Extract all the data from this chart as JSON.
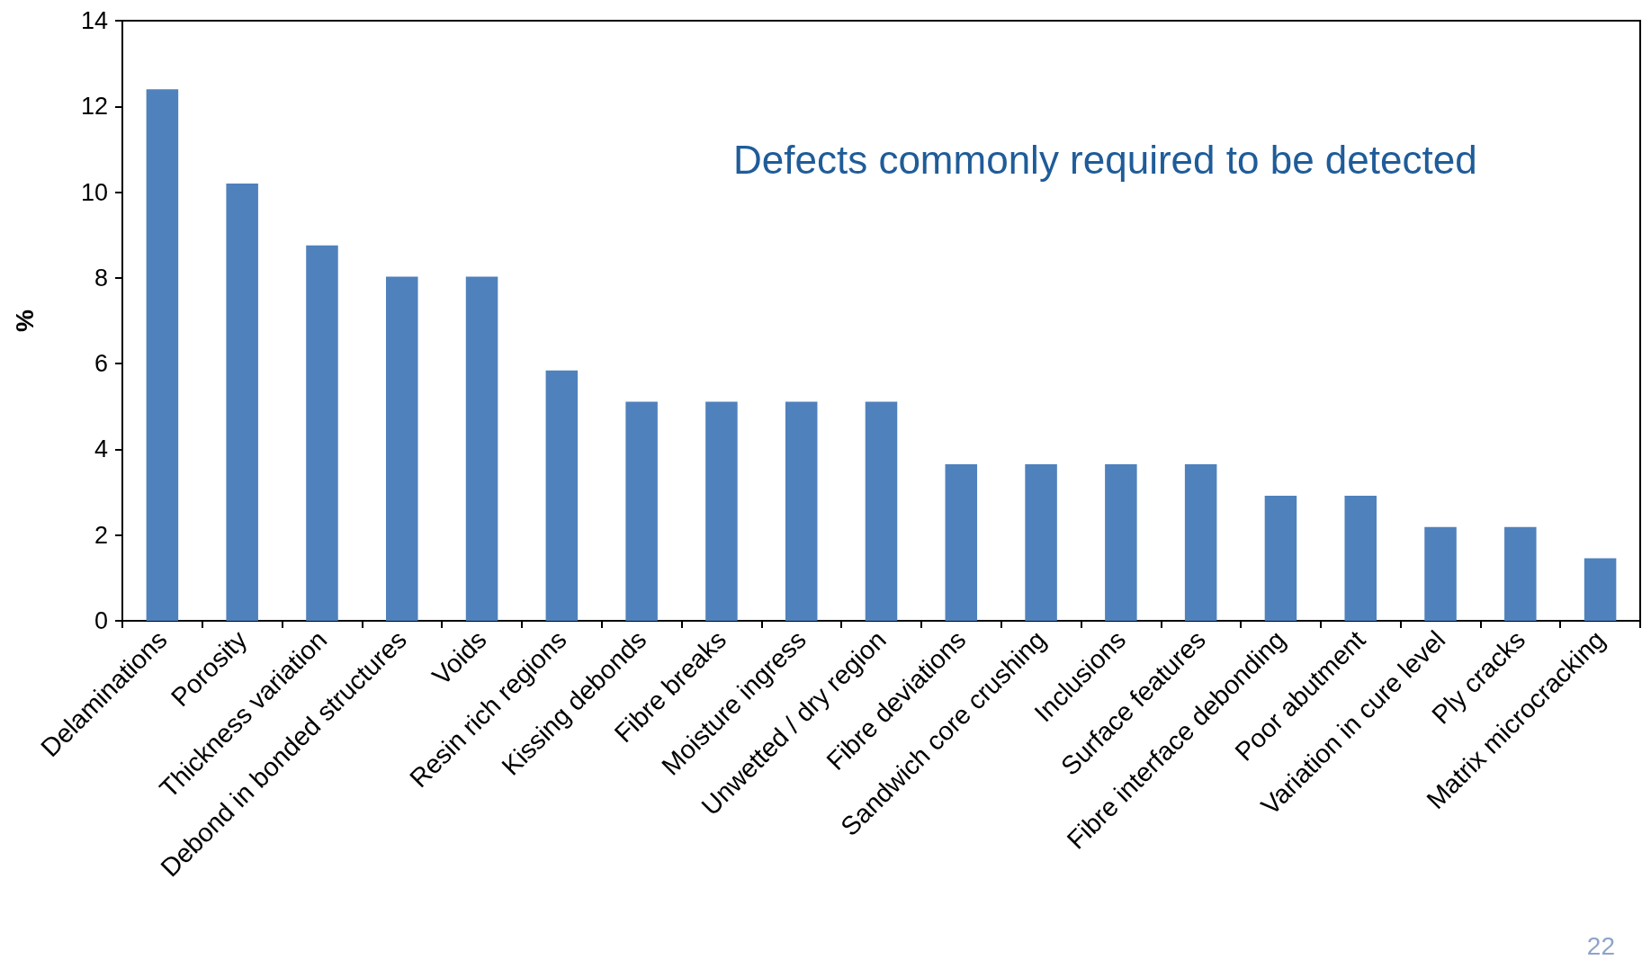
{
  "chart_data": {
    "type": "bar",
    "title": "Defects commonly required to be detected",
    "ylabel": "%",
    "categories": [
      "Delaminations",
      "Porosity",
      "Thickness variation",
      "Debond in bonded structures",
      "Voids",
      "Resin rich regions",
      "Kissing debonds",
      "Fibre breaks",
      "Moisture ingress",
      "Unwetted / dry region",
      "Fibre deviations",
      "Sandwich core crushing",
      "Inclusions",
      "Surface features",
      "Fibre interface debonding",
      "Poor abutment",
      "Variation in cure level",
      "Ply cracks",
      "Matrix microcracking"
    ],
    "values": [
      12.4,
      10.2,
      8.76,
      8.03,
      8.03,
      5.84,
      5.11,
      5.11,
      5.11,
      5.11,
      3.65,
      3.65,
      3.65,
      3.65,
      2.92,
      2.92,
      2.19,
      2.19,
      1.46
    ],
    "color": "#4f81bd",
    "ylim": [
      0,
      14
    ],
    "yticks": [
      0,
      2,
      4,
      6,
      8,
      10,
      12,
      14
    ],
    "grid": false,
    "annotations": [
      "22"
    ]
  }
}
